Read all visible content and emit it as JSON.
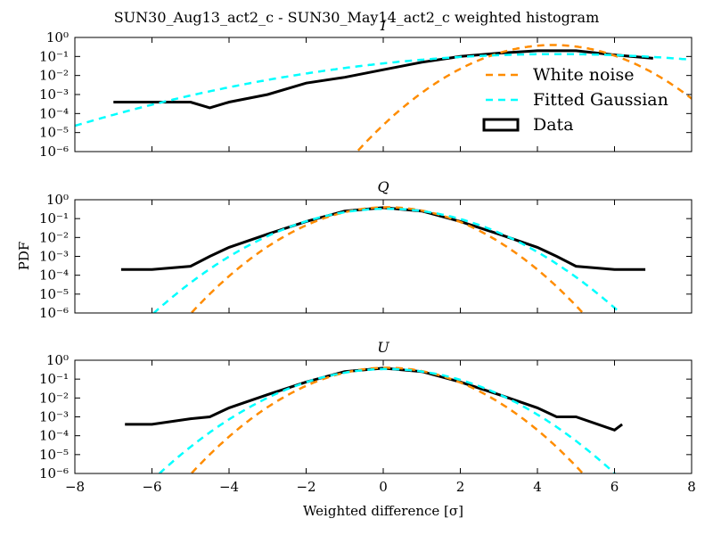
{
  "figure_title": "SUN30_Aug13_act2_c - SUN30_May14_act2_c weighted histogram",
  "ylabel": "PDF",
  "xlabel": "Weighted difference [σ]",
  "colors": {
    "white_noise": "#ff8c00",
    "fitted_gaussian": "#00ffff",
    "data": "#000000"
  },
  "legend": {
    "white_noise": "White noise",
    "fitted_gaussian": "Fitted Gaussian",
    "data": "Data"
  },
  "chart_data": [
    {
      "type": "line",
      "title": "I",
      "xlim": [
        -8,
        8
      ],
      "ylim": [
        1e-06,
        1
      ],
      "yscale": "log",
      "x_ticks": [
        "−8",
        "−6",
        "−4",
        "−2",
        "0",
        "2",
        "4",
        "6",
        "8"
      ],
      "y_ticks": [
        "10⁰",
        "10⁻¹",
        "10⁻²",
        "10⁻³",
        "10⁻⁴",
        "10⁻⁵",
        "10⁻⁶"
      ],
      "legend_position": "right",
      "series": [
        {
          "name": "White noise",
          "style": "dashed",
          "mean": 4.4,
          "sigma": 1.0
        },
        {
          "name": "Fitted Gaussian",
          "style": "dashed",
          "mean": 4.5,
          "sigma": 3.0
        },
        {
          "name": "Data",
          "style": "step",
          "x": [
            -7,
            -6,
            -5,
            -4.5,
            -4,
            -3,
            -2,
            -1,
            0,
            1,
            2,
            3,
            4,
            5,
            6,
            7
          ],
          "y": [
            0.0004,
            0.0004,
            0.0004,
            0.0002,
            0.0004,
            0.001,
            0.004,
            0.008,
            0.02,
            0.05,
            0.1,
            0.15,
            0.2,
            0.2,
            0.12,
            0.08
          ]
        }
      ]
    },
    {
      "type": "line",
      "title": "Q",
      "xlim": [
        -8,
        8
      ],
      "ylim": [
        1e-06,
        1
      ],
      "yscale": "log",
      "x_ticks": [
        "−8",
        "−6",
        "−4",
        "−2",
        "0",
        "2",
        "4",
        "6",
        "8"
      ],
      "y_ticks": [
        "10⁰",
        "10⁻¹",
        "10⁻²",
        "10⁻³",
        "10⁻⁴",
        "10⁻⁵",
        "10⁻⁶"
      ],
      "series": [
        {
          "name": "White noise",
          "style": "dashed",
          "mean": 0.1,
          "sigma": 1.0
        },
        {
          "name": "Fitted Gaussian",
          "style": "dashed",
          "mean": 0.1,
          "sigma": 1.2
        },
        {
          "name": "Data",
          "style": "step",
          "x": [
            -6.8,
            -6,
            -5,
            -4.5,
            -4,
            -3,
            -2,
            -1,
            0,
            1,
            2,
            3,
            4,
            4.5,
            5,
            6,
            6.8
          ],
          "y": [
            0.0002,
            0.0002,
            0.0003,
            0.001,
            0.003,
            0.015,
            0.07,
            0.25,
            0.38,
            0.25,
            0.07,
            0.015,
            0.003,
            0.001,
            0.0003,
            0.0002,
            0.0002
          ]
        }
      ]
    },
    {
      "type": "line",
      "title": "U",
      "xlim": [
        -8,
        8
      ],
      "ylim": [
        1e-06,
        1
      ],
      "yscale": "log",
      "x_ticks": [
        "−8",
        "−6",
        "−4",
        "−2",
        "0",
        "2",
        "4",
        "6",
        "8"
      ],
      "y_ticks": [
        "10⁰",
        "10⁻¹",
        "10⁻²",
        "10⁻³",
        "10⁻⁴",
        "10⁻⁵",
        "10⁻⁶"
      ],
      "series": [
        {
          "name": "White noise",
          "style": "dashed",
          "mean": 0.1,
          "sigma": 1.0
        },
        {
          "name": "Fitted Gaussian",
          "style": "dashed",
          "mean": 0.1,
          "sigma": 1.17
        },
        {
          "name": "Data",
          "style": "step",
          "x": [
            -6.7,
            -6,
            -5,
            -4.5,
            -4,
            -3,
            -2,
            -1,
            0,
            1,
            2,
            3,
            4,
            4.5,
            5,
            6,
            6.2
          ],
          "y": [
            0.0004,
            0.0004,
            0.0008,
            0.001,
            0.003,
            0.015,
            0.07,
            0.25,
            0.38,
            0.25,
            0.07,
            0.015,
            0.003,
            0.001,
            0.001,
            0.0002,
            0.0004
          ]
        }
      ]
    }
  ]
}
